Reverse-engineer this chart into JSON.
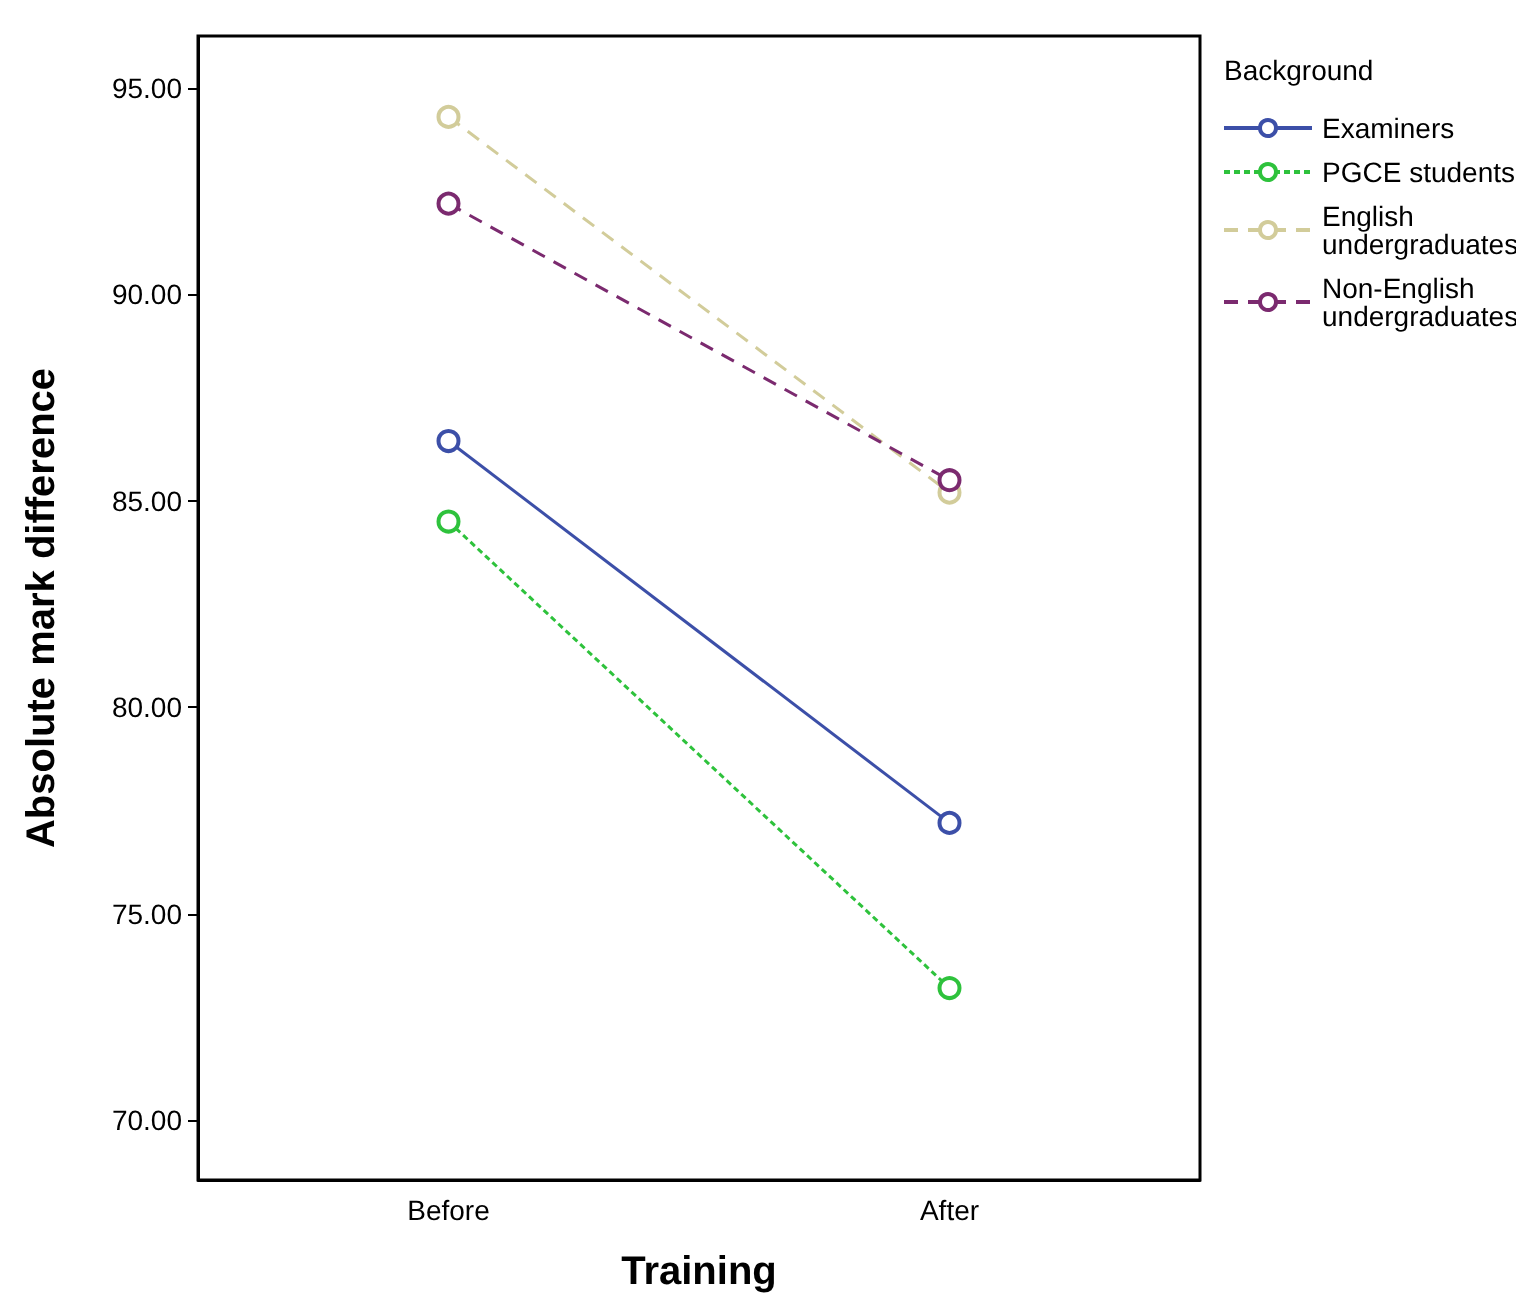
{
  "chart_data": {
    "type": "line",
    "xlabel": "Training",
    "ylabel": "Absolute mark difference",
    "legend_title": "Background",
    "categories": [
      "Before",
      "After"
    ],
    "series": [
      {
        "name": "Examiners",
        "color": "#3c4fa8",
        "values": [
          86.45,
          77.2
        ],
        "line_style": "solid"
      },
      {
        "name": "PGCE students",
        "color": "#2ec23c",
        "values": [
          84.5,
          73.2
        ],
        "line_style": "dotted"
      },
      {
        "name": "English undergraduates",
        "color": "#d2cc9a",
        "values": [
          94.3,
          85.2
        ],
        "line_style": "dashed"
      },
      {
        "name": "Non-English undergraduates",
        "color": "#7b2a6f",
        "values": [
          92.2,
          85.5
        ],
        "line_style": "dashed"
      }
    ],
    "ylim": [
      68.55,
      96.26
    ],
    "yticks": [
      {
        "value": 70,
        "label": "70.00"
      },
      {
        "value": 75,
        "label": "75.00"
      },
      {
        "value": 80,
        "label": "80.00"
      },
      {
        "value": 85,
        "label": "85.00"
      },
      {
        "value": 90,
        "label": "90.00"
      },
      {
        "value": 95,
        "label": "95.00"
      }
    ],
    "marker": "circle",
    "legend": "right",
    "grid": false
  }
}
